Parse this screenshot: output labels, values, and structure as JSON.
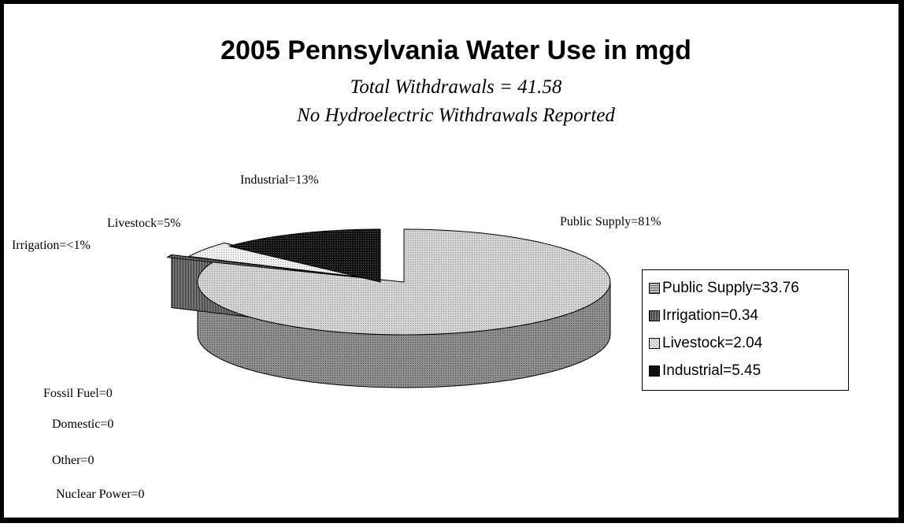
{
  "title": "2005 Pennsylvania Water Use in mgd",
  "subtitle_1": "Total Withdrawals = 41.58",
  "subtitle_2": "No Hydroelectric Withdrawals Reported",
  "chart_data": {
    "type": "pie",
    "title": "2005 Pennsylvania Water Use in mgd",
    "slices": [
      {
        "name": "Public Supply=33.76",
        "value": 33.76,
        "pct_label": "Public Supply=81%",
        "color": "#c8c8c8"
      },
      {
        "name": "Irrigation=0.34",
        "value": 0.34,
        "pct_label": "Irrigation=<1%",
        "color": "#6e6e6e"
      },
      {
        "name": "Livestock=2.04",
        "value": 2.04,
        "pct_label": "Livestock=5%",
        "color": "#e6e6e6"
      },
      {
        "name": "Industrial=5.45",
        "value": 5.45,
        "pct_label": "Industrial=13%",
        "color": "#111111"
      }
    ],
    "zero_categories": [
      "Fossil Fuel=0",
      "Domestic=0",
      "Other=0",
      "Nuclear Power=0"
    ],
    "legend_position": "right"
  }
}
